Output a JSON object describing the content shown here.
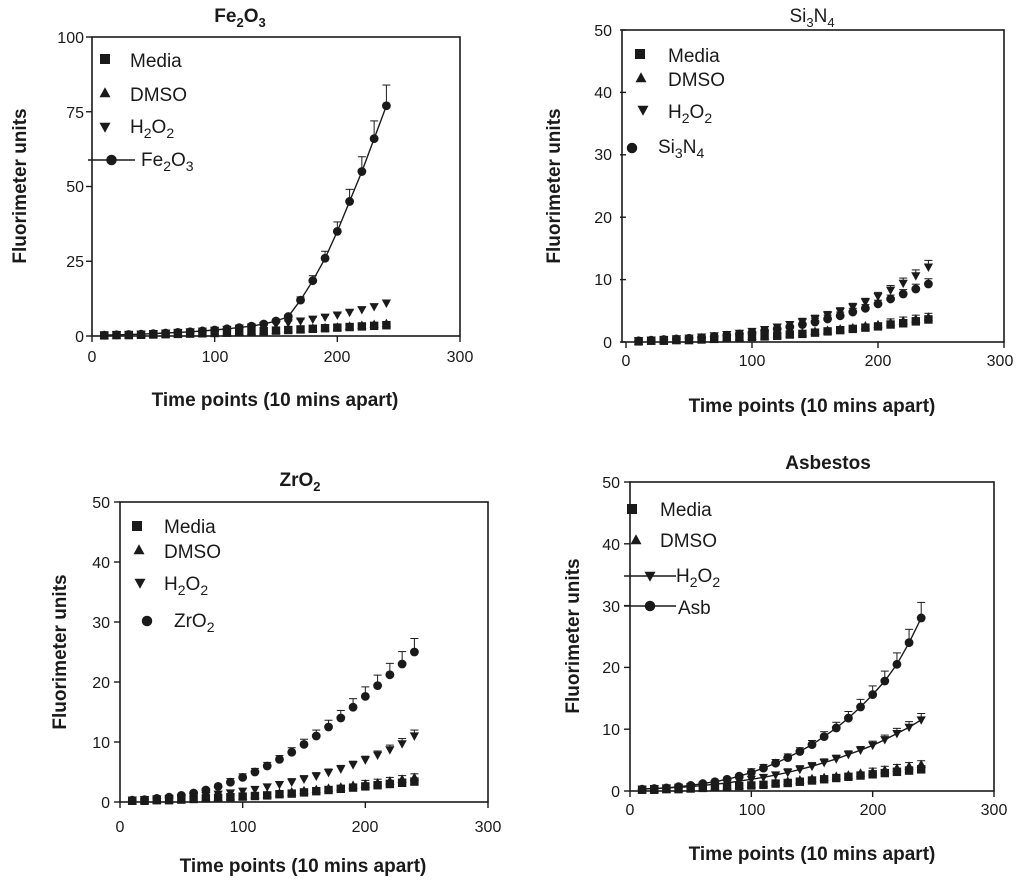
{
  "chart_data": [
    {
      "type": "line",
      "title": "Fe2O3",
      "xlabel": "Time points (10 mins apart)",
      "ylabel": "Fluorimeter units",
      "xlim": [
        0,
        300
      ],
      "ylim": [
        0,
        100
      ],
      "xticks": [
        0,
        100,
        200,
        300
      ],
      "yticks": [
        0,
        25,
        50,
        75,
        100
      ],
      "legend": "top-left",
      "x": [
        10,
        20,
        30,
        40,
        50,
        60,
        70,
        80,
        90,
        100,
        110,
        120,
        130,
        140,
        150,
        160,
        170,
        180,
        190,
        200,
        210,
        220,
        230,
        240
      ],
      "series": [
        {
          "name": "Media",
          "marker": "square",
          "line": false,
          "values": [
            0.2,
            0.3,
            0.3,
            0.4,
            0.5,
            0.6,
            0.7,
            0.8,
            0.9,
            1.0,
            1.1,
            1.3,
            1.4,
            1.6,
            1.8,
            2.0,
            2.2,
            2.4,
            2.6,
            2.8,
            3.0,
            3.2,
            3.4,
            3.6
          ]
        },
        {
          "name": "DMSO",
          "marker": "triangle-up",
          "line": false,
          "values": [
            0.2,
            0.3,
            0.4,
            0.5,
            0.6,
            0.7,
            0.8,
            0.9,
            1.0,
            1.1,
            1.2,
            1.4,
            1.6,
            1.8,
            2.0,
            2.2,
            2.4,
            2.6,
            2.8,
            3.0,
            3.3,
            3.6,
            3.9,
            4.2
          ]
        },
        {
          "name": "H2O2",
          "marker": "triangle-down",
          "line": false,
          "values": [
            0.3,
            0.4,
            0.5,
            0.6,
            0.8,
            1.0,
            1.2,
            1.4,
            1.6,
            1.9,
            2.2,
            2.6,
            3.0,
            3.4,
            3.9,
            4.4,
            5.0,
            5.6,
            6.3,
            7.0,
            7.9,
            8.8,
            9.8,
            11.0
          ]
        },
        {
          "name": "Fe2O3",
          "marker": "circle",
          "line": true,
          "values": [
            0.3,
            0.4,
            0.5,
            0.6,
            0.8,
            1.0,
            1.2,
            1.4,
            1.7,
            2.0,
            2.4,
            2.8,
            3.3,
            4.0,
            5.0,
            6.5,
            12.0,
            18.5,
            26.0,
            35.0,
            45.0,
            55.0,
            66.0,
            77.0
          ]
        }
      ]
    },
    {
      "type": "line",
      "title": "Si3N4",
      "xlabel": "Time points (10 mins apart)",
      "ylabel": "Fluorimeter units",
      "xlim": [
        0,
        300
      ],
      "ylim": [
        0,
        50
      ],
      "xticks": [
        0,
        100,
        200,
        300
      ],
      "yticks": [
        0,
        10,
        20,
        30,
        40,
        50
      ],
      "legend": "top-left",
      "x": [
        10,
        20,
        30,
        40,
        50,
        60,
        70,
        80,
        90,
        100,
        110,
        120,
        130,
        140,
        150,
        160,
        170,
        180,
        190,
        200,
        210,
        220,
        230,
        240
      ],
      "series": [
        {
          "name": "Media",
          "marker": "square",
          "line": false,
          "values": [
            0.1,
            0.2,
            0.2,
            0.3,
            0.3,
            0.4,
            0.5,
            0.6,
            0.7,
            0.8,
            0.9,
            1.0,
            1.2,
            1.3,
            1.5,
            1.7,
            1.9,
            2.1,
            2.3,
            2.5,
            2.8,
            3.0,
            3.3,
            3.6
          ]
        },
        {
          "name": "DMSO",
          "marker": "triangle-up",
          "line": false,
          "values": [
            0.1,
            0.2,
            0.3,
            0.3,
            0.4,
            0.5,
            0.6,
            0.7,
            0.8,
            0.9,
            1.0,
            1.2,
            1.3,
            1.5,
            1.7,
            1.9,
            2.1,
            2.3,
            2.6,
            2.8,
            3.1,
            3.4,
            3.7,
            4.0
          ]
        },
        {
          "name": "H2O2",
          "marker": "triangle-down",
          "line": false,
          "values": [
            0.2,
            0.3,
            0.4,
            0.5,
            0.6,
            0.8,
            1.0,
            1.2,
            1.4,
            1.7,
            2.0,
            2.4,
            2.8,
            3.2,
            3.7,
            4.3,
            4.9,
            5.6,
            6.4,
            7.3,
            8.3,
            9.4,
            10.6,
            12.0
          ]
        },
        {
          "name": "Si3N4",
          "marker": "circle",
          "line": false,
          "values": [
            0.2,
            0.3,
            0.4,
            0.5,
            0.6,
            0.7,
            0.9,
            1.1,
            1.3,
            1.5,
            1.8,
            2.1,
            2.4,
            2.8,
            3.2,
            3.7,
            4.2,
            4.8,
            5.4,
            6.1,
            6.9,
            7.7,
            8.5,
            9.3
          ]
        }
      ]
    },
    {
      "type": "line",
      "title": "ZrO2",
      "xlabel": "Time points (10 mins apart)",
      "ylabel": "Fluorimeter units",
      "xlim": [
        0,
        300
      ],
      "ylim": [
        0,
        50
      ],
      "xticks": [
        0,
        100,
        200,
        300
      ],
      "yticks": [
        0,
        10,
        20,
        30,
        40,
        50
      ],
      "legend": "top-left",
      "x": [
        10,
        20,
        30,
        40,
        50,
        60,
        70,
        80,
        90,
        100,
        110,
        120,
        130,
        140,
        150,
        160,
        170,
        180,
        190,
        200,
        210,
        220,
        230,
        240
      ],
      "series": [
        {
          "name": "Media",
          "marker": "square",
          "line": false,
          "values": [
            0.2,
            0.2,
            0.3,
            0.3,
            0.4,
            0.5,
            0.6,
            0.7,
            0.8,
            0.9,
            1.0,
            1.1,
            1.3,
            1.4,
            1.6,
            1.8,
            2.0,
            2.2,
            2.4,
            2.6,
            2.8,
            3.0,
            3.2,
            3.4
          ]
        },
        {
          "name": "DMSO",
          "marker": "triangle-up",
          "line": false,
          "values": [
            0.2,
            0.3,
            0.3,
            0.4,
            0.5,
            0.6,
            0.7,
            0.8,
            0.9,
            1.0,
            1.2,
            1.3,
            1.5,
            1.7,
            1.9,
            2.1,
            2.3,
            2.5,
            2.8,
            3.0,
            3.2,
            3.5,
            3.8,
            4.1
          ]
        },
        {
          "name": "H2O2",
          "marker": "triangle-down",
          "line": false,
          "values": [
            0.3,
            0.4,
            0.5,
            0.6,
            0.7,
            0.9,
            1.1,
            1.3,
            1.5,
            1.8,
            2.1,
            2.5,
            2.9,
            3.3,
            3.8,
            4.3,
            4.9,
            5.5,
            6.2,
            7.0,
            7.8,
            8.7,
            9.7,
            11.0
          ]
        },
        {
          "name": "ZrO2",
          "marker": "circle",
          "line": false,
          "values": [
            0.3,
            0.4,
            0.6,
            0.8,
            1.1,
            1.5,
            2.0,
            2.6,
            3.3,
            4.1,
            5.0,
            6.0,
            7.1,
            8.3,
            9.6,
            11.0,
            12.5,
            14.0,
            15.8,
            17.6,
            19.4,
            21.2,
            23.0,
            25.0
          ]
        }
      ]
    },
    {
      "type": "line",
      "title": "Asbestos",
      "xlabel": "Time points (10 mins apart)",
      "ylabel": "Fluorimeter units",
      "xlim": [
        0,
        300
      ],
      "ylim": [
        0,
        50
      ],
      "xticks": [
        0,
        100,
        200,
        300
      ],
      "yticks": [
        0,
        10,
        20,
        30,
        40,
        50
      ],
      "legend": "top-left",
      "x": [
        10,
        20,
        30,
        40,
        50,
        60,
        70,
        80,
        90,
        100,
        110,
        120,
        130,
        140,
        150,
        160,
        170,
        180,
        190,
        200,
        210,
        220,
        230,
        240
      ],
      "series": [
        {
          "name": "Media",
          "marker": "square",
          "line": false,
          "values": [
            0.2,
            0.2,
            0.3,
            0.3,
            0.4,
            0.5,
            0.6,
            0.7,
            0.8,
            0.9,
            1.0,
            1.2,
            1.3,
            1.5,
            1.7,
            1.9,
            2.1,
            2.3,
            2.5,
            2.7,
            2.9,
            3.1,
            3.3,
            3.5
          ]
        },
        {
          "name": "DMSO",
          "marker": "triangle-up",
          "line": false,
          "values": [
            0.2,
            0.3,
            0.3,
            0.4,
            0.5,
            0.6,
            0.7,
            0.8,
            0.9,
            1.1,
            1.2,
            1.4,
            1.6,
            1.8,
            2.0,
            2.2,
            2.4,
            2.6,
            2.9,
            3.1,
            3.4,
            3.7,
            4.0,
            4.3
          ]
        },
        {
          "name": "H2O2",
          "marker": "triangle-down",
          "line": true,
          "values": [
            0.3,
            0.4,
            0.5,
            0.6,
            0.7,
            0.9,
            1.1,
            1.3,
            1.6,
            1.9,
            2.2,
            2.6,
            3.0,
            3.5,
            4.0,
            4.6,
            5.2,
            5.9,
            6.6,
            7.4,
            8.3,
            9.3,
            10.3,
            11.5
          ]
        },
        {
          "name": "Asb",
          "marker": "circle",
          "line": true,
          "values": [
            0.3,
            0.4,
            0.5,
            0.7,
            0.9,
            1.2,
            1.5,
            1.9,
            2.4,
            3.0,
            3.7,
            4.5,
            5.4,
            6.4,
            7.5,
            8.8,
            10.2,
            11.8,
            13.6,
            15.6,
            17.8,
            20.5,
            24.0,
            28.0
          ]
        }
      ]
    }
  ],
  "panels": [
    {
      "title_main": "Fe",
      "title_sub1": "2",
      "title_mid": "O",
      "title_sub2": "3",
      "ylabel": "Fluorimeter units",
      "xlabel": "Time points (10 mins apart)",
      "yticks": [
        "0",
        "25",
        "50",
        "75",
        "100"
      ],
      "xticks": [
        "0",
        "100",
        "200",
        "300"
      ],
      "legend": [
        {
          "parts": [
            "Media"
          ]
        },
        {
          "parts": [
            "DMSO"
          ]
        },
        {
          "parts": [
            "H",
            "2",
            "O",
            "2"
          ]
        },
        {
          "parts": [
            "Fe",
            "2",
            "O",
            "3"
          ]
        }
      ]
    },
    {
      "title_main": "Si",
      "title_sub1": "3",
      "title_mid": "N",
      "title_sub2": "4",
      "ylabel": "Fluorimeter units",
      "xlabel": "Time points (10 mins apart)",
      "yticks": [
        "0",
        "10",
        "20",
        "30",
        "40",
        "50"
      ],
      "xticks": [
        "0",
        "100",
        "200",
        "300"
      ],
      "legend": [
        {
          "parts": [
            "Media"
          ]
        },
        {
          "parts": [
            "DMSO"
          ]
        },
        {
          "parts": [
            "H",
            "2",
            "O",
            "2"
          ]
        },
        {
          "parts": [
            "Si",
            "3",
            "N",
            "4"
          ]
        }
      ]
    },
    {
      "title_main": "ZrO",
      "title_sub1": "2",
      "title_mid": "",
      "title_sub2": "",
      "ylabel": "Fluorimeter units",
      "xlabel": "Time points (10 mins apart)",
      "yticks": [
        "0",
        "10",
        "20",
        "30",
        "40",
        "50"
      ],
      "xticks": [
        "0",
        "100",
        "200",
        "300"
      ],
      "legend": [
        {
          "parts": [
            "Media"
          ]
        },
        {
          "parts": [
            "DMSO"
          ]
        },
        {
          "parts": [
            "H",
            "2",
            "O",
            "2"
          ]
        },
        {
          "parts": [
            "ZrO",
            "2"
          ]
        }
      ]
    },
    {
      "title_main": "Asbestos",
      "title_sub1": "",
      "title_mid": "",
      "title_sub2": "",
      "ylabel": "Fluorimeter units",
      "xlabel": "Time points (10 mins apart)",
      "yticks": [
        "0",
        "10",
        "20",
        "30",
        "40",
        "50"
      ],
      "xticks": [
        "0",
        "100",
        "200",
        "300"
      ],
      "legend": [
        {
          "parts": [
            "Media"
          ]
        },
        {
          "parts": [
            "DMSO"
          ]
        },
        {
          "parts": [
            "H",
            "2",
            "O",
            "2"
          ]
        },
        {
          "parts": [
            "Asb"
          ]
        }
      ]
    }
  ]
}
